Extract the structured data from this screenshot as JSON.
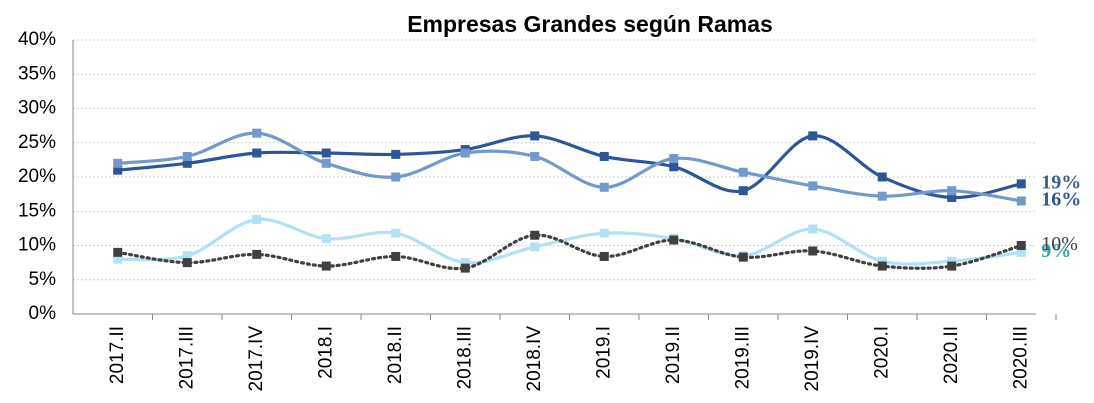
{
  "chart_data": {
    "type": "line",
    "title": "Empresas Grandes según Ramas",
    "categories": [
      "2017.II",
      "2017.III",
      "2017.IV",
      "2018.I",
      "2018.II",
      "2018.III",
      "2018.IV",
      "2019.I",
      "2019.II",
      "2019.III",
      "2019.IV",
      "2020.I",
      "2020.II",
      "2020.III"
    ],
    "series": [
      {
        "color": "#2e5597",
        "label_color": "#3b5c8f",
        "values": [
          21,
          22,
          23.5,
          23.5,
          23.3,
          24,
          26,
          23,
          21.5,
          18,
          26,
          20,
          17,
          19
        ],
        "value_labels": [
          null,
          null,
          null,
          null,
          null,
          null,
          null,
          null,
          null,
          null,
          null,
          null,
          null,
          "19%"
        ]
      },
      {
        "color": "#7399cc",
        "label_color": "#2e5597",
        "values": [
          22,
          23,
          26.4,
          22,
          20,
          23.5,
          23,
          18.5,
          22.7,
          20.7,
          18.7,
          17.2,
          18,
          16.5
        ],
        "value_labels": [
          null,
          null,
          null,
          null,
          null,
          null,
          null,
          null,
          null,
          null,
          null,
          null,
          null,
          "16%"
        ]
      },
      {
        "color": "#b3e0f5",
        "label_color": "#3aa0a8",
        "values": [
          8,
          8.5,
          13.8,
          11,
          11.8,
          7.5,
          9.8,
          11.8,
          11,
          8.5,
          12.4,
          7.7,
          7.7,
          9
        ],
        "value_labels": [
          null,
          null,
          null,
          null,
          null,
          null,
          null,
          null,
          null,
          null,
          null,
          null,
          null,
          "9%"
        ]
      },
      {
        "color": "#404040",
        "label_color": "#404040",
        "dashed": true,
        "values": [
          9,
          7.5,
          8.7,
          7,
          8.4,
          6.7,
          11.5,
          8.4,
          10.8,
          8.3,
          9.2,
          7,
          7,
          10
        ],
        "value_labels": [
          null,
          null,
          null,
          null,
          null,
          null,
          null,
          null,
          null,
          null,
          null,
          null,
          null,
          "10%"
        ]
      }
    ],
    "ylim": [
      0,
      40
    ],
    "yticks": [
      {
        "value": 0,
        "label": "0%"
      },
      {
        "value": 5,
        "label": "5%"
      },
      {
        "value": 10,
        "label": "10%"
      },
      {
        "value": 15,
        "label": "15%"
      },
      {
        "value": 20,
        "label": "20%"
      },
      {
        "value": 25,
        "label": "25%"
      },
      {
        "value": 30,
        "label": "30%"
      },
      {
        "value": 35,
        "label": "35%"
      },
      {
        "value": 40,
        "label": "40%"
      }
    ],
    "grid": true
  }
}
